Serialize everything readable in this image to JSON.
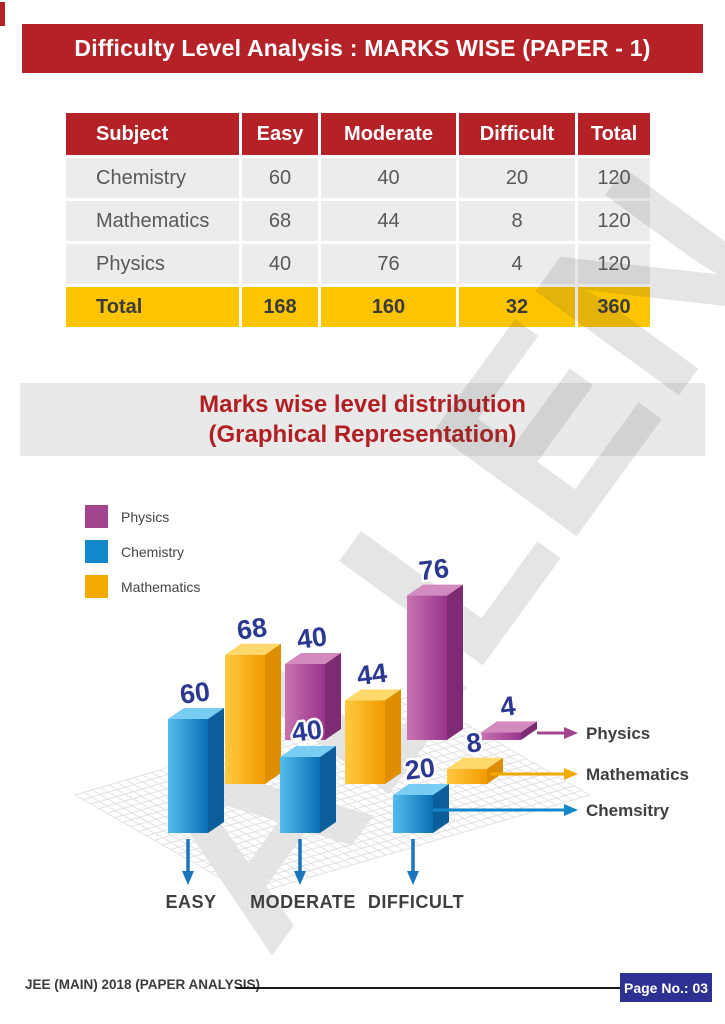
{
  "header": {
    "title": "Difficulty Level Analysis : MARKS WISE (PAPER - 1)"
  },
  "watermark": "ALLEN",
  "table": {
    "headers": [
      "Subject",
      "Easy",
      "Moderate",
      "Difficult",
      "Total"
    ],
    "rows": [
      [
        "Chemistry",
        "60",
        "40",
        "20",
        "120"
      ],
      [
        "Mathematics",
        "68",
        "44",
        "8",
        "120"
      ],
      [
        "Physics",
        "40",
        "76",
        "4",
        "120"
      ]
    ],
    "total_row": [
      "Total",
      "168",
      "160",
      "32",
      "360"
    ]
  },
  "section": {
    "title_line1": "Marks wise level distribution",
    "title_line2": "(Graphical Representation)"
  },
  "legend": [
    {
      "label": "Physics",
      "color": "#A0458E"
    },
    {
      "label": "Chemistry",
      "color": "#1287C9"
    },
    {
      "label": "Mathematics",
      "color": "#F2A900"
    }
  ],
  "chart_data": {
    "type": "bar",
    "projection": "3d",
    "title": "Marks wise level distribution (Graphical Representation)",
    "categories": [
      "EASY",
      "MODERATE",
      "DIFFICULT"
    ],
    "series": [
      {
        "name": "Chemistry",
        "color": "#1287C9",
        "values": [
          60,
          40,
          20
        ]
      },
      {
        "name": "Mathematics",
        "color": "#F2A900",
        "values": [
          68,
          44,
          8
        ]
      },
      {
        "name": "Physics",
        "color": "#A0458E",
        "values": [
          40,
          76,
          4
        ]
      }
    ],
    "right_labels": [
      "Physics",
      "Mathematics",
      "Chemsitry"
    ],
    "value_label_color": "#2B3990",
    "axis_label_color": "#3F3F3F",
    "category_arrow_color": "#1B75BC",
    "ylim": [
      0,
      80
    ],
    "grid": true,
    "legend_position": "top-left"
  },
  "footer": {
    "left_text": "JEE (MAIN) 2018 (PAPER ANALYSIS)",
    "page_label": "Page No.: 03"
  }
}
